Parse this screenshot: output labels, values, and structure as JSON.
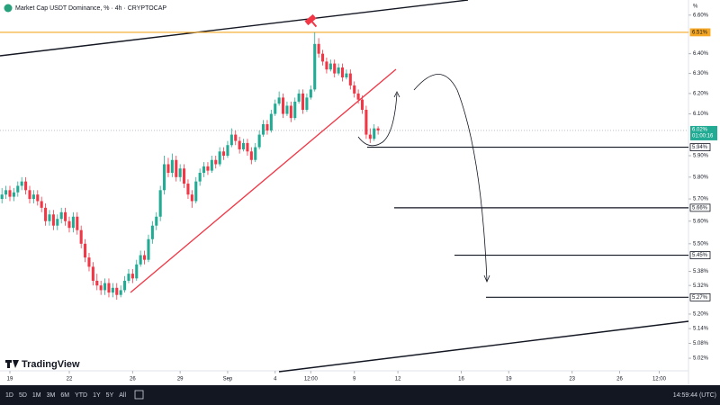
{
  "chart_data": {
    "type": "candlestick",
    "title": "Market Cap USDT Dominance, % · 4h · CRYPTOCAP",
    "scale_unit": "%",
    "up_color": "#22ab94",
    "down_color": "#f23645",
    "log_scale": true,
    "ylim": [
      4.97,
      6.68
    ],
    "yticks": [
      {
        "value": 6.6,
        "label": "6.60%"
      },
      {
        "value": 6.4,
        "label": "6.40%"
      },
      {
        "value": 6.3,
        "label": "6.30%"
      },
      {
        "value": 6.2,
        "label": "6.20%"
      },
      {
        "value": 6.1,
        "label": "6.10%"
      },
      {
        "value": 5.9,
        "label": "5.90%"
      },
      {
        "value": 5.8,
        "label": "5.80%"
      },
      {
        "value": 5.7,
        "label": "5.70%"
      },
      {
        "value": 5.6,
        "label": "5.60%"
      },
      {
        "value": 5.5,
        "label": "5.50%"
      },
      {
        "value": 5.38,
        "label": "5.38%"
      },
      {
        "value": 5.32,
        "label": "5.32%"
      },
      {
        "value": 5.2,
        "label": "5.20%"
      },
      {
        "value": 5.14,
        "label": "5.14%"
      },
      {
        "value": 5.08,
        "label": "5.08%"
      },
      {
        "value": 5.02,
        "label": "5.02%"
      }
    ],
    "xlim": [
      -0.5,
      173.4
    ],
    "xticks": [
      {
        "value": 2,
        "label": "19"
      },
      {
        "value": 17,
        "label": "22"
      },
      {
        "value": 33,
        "label": "26"
      },
      {
        "value": 45,
        "label": "29"
      },
      {
        "value": 57,
        "label": "Sep"
      },
      {
        "value": 69,
        "label": "4"
      },
      {
        "value": 78,
        "label": "12:00"
      },
      {
        "value": 89,
        "label": "9"
      },
      {
        "value": 100,
        "label": "12"
      },
      {
        "value": 116,
        "label": "16"
      },
      {
        "value": 128,
        "label": "19"
      },
      {
        "value": 144,
        "label": "23"
      },
      {
        "value": 156,
        "label": "26"
      },
      {
        "value": 166,
        "label": "12:00"
      }
    ],
    "levels": [
      {
        "value": 6.51,
        "label": "6.51%",
        "color": "#f5a623"
      },
      {
        "value": 5.94,
        "label": "5.94%",
        "color": "#131722"
      },
      {
        "value": 5.66,
        "label": "5.66%",
        "color": "#131722"
      },
      {
        "value": 5.45,
        "label": "5.45%",
        "color": "#131722"
      },
      {
        "value": 5.27,
        "label": "5.27%",
        "color": "#131722"
      }
    ],
    "last_price": {
      "value": 6.02,
      "label": "6.02%",
      "countdown": "01:00:16"
    },
    "candles": [
      [
        5.7,
        5.75,
        5.68,
        5.72
      ],
      [
        5.72,
        5.76,
        5.7,
        5.74
      ],
      [
        5.74,
        5.76,
        5.69,
        5.71
      ],
      [
        5.71,
        5.75,
        5.69,
        5.73
      ],
      [
        5.73,
        5.78,
        5.71,
        5.76
      ],
      [
        5.76,
        5.8,
        5.74,
        5.78
      ],
      [
        5.78,
        5.8,
        5.72,
        5.74
      ],
      [
        5.74,
        5.76,
        5.68,
        5.7
      ],
      [
        5.7,
        5.74,
        5.68,
        5.72
      ],
      [
        5.72,
        5.74,
        5.67,
        5.69
      ],
      [
        5.69,
        5.71,
        5.64,
        5.66
      ],
      [
        5.66,
        5.68,
        5.58,
        5.6
      ],
      [
        5.6,
        5.65,
        5.58,
        5.63
      ],
      [
        5.63,
        5.65,
        5.56,
        5.58
      ],
      [
        5.58,
        5.63,
        5.56,
        5.61
      ],
      [
        5.61,
        5.66,
        5.59,
        5.64
      ],
      [
        5.64,
        5.66,
        5.58,
        5.6
      ],
      [
        5.6,
        5.62,
        5.55,
        5.57
      ],
      [
        5.57,
        5.64,
        5.55,
        5.62
      ],
      [
        5.62,
        5.64,
        5.54,
        5.56
      ],
      [
        5.56,
        5.58,
        5.48,
        5.5
      ],
      [
        5.5,
        5.52,
        5.42,
        5.44
      ],
      [
        5.44,
        5.46,
        5.38,
        5.4
      ],
      [
        5.4,
        5.42,
        5.32,
        5.34
      ],
      [
        5.34,
        5.37,
        5.3,
        5.32
      ],
      [
        5.32,
        5.34,
        5.28,
        5.3
      ],
      [
        5.3,
        5.35,
        5.28,
        5.33
      ],
      [
        5.33,
        5.35,
        5.27,
        5.29
      ],
      [
        5.29,
        5.33,
        5.27,
        5.31
      ],
      [
        5.31,
        5.33,
        5.26,
        5.28
      ],
      [
        5.28,
        5.32,
        5.27,
        5.3
      ],
      [
        5.3,
        5.36,
        5.29,
        5.34
      ],
      [
        5.34,
        5.39,
        5.33,
        5.37
      ],
      [
        5.37,
        5.39,
        5.33,
        5.35
      ],
      [
        5.35,
        5.43,
        5.34,
        5.41
      ],
      [
        5.41,
        5.47,
        5.4,
        5.45
      ],
      [
        5.45,
        5.47,
        5.41,
        5.43
      ],
      [
        5.43,
        5.54,
        5.42,
        5.52
      ],
      [
        5.52,
        5.6,
        5.5,
        5.58
      ],
      [
        5.58,
        5.64,
        5.56,
        5.62
      ],
      [
        5.62,
        5.76,
        5.6,
        5.74
      ],
      [
        5.74,
        5.9,
        5.72,
        5.86
      ],
      [
        5.86,
        5.89,
        5.8,
        5.82
      ],
      [
        5.82,
        5.91,
        5.8,
        5.88
      ],
      [
        5.88,
        5.9,
        5.78,
        5.8
      ],
      [
        5.8,
        5.86,
        5.78,
        5.84
      ],
      [
        5.84,
        5.86,
        5.75,
        5.77
      ],
      [
        5.77,
        5.79,
        5.7,
        5.72
      ],
      [
        5.72,
        5.74,
        5.66,
        5.69
      ],
      [
        5.69,
        5.8,
        5.68,
        5.78
      ],
      [
        5.78,
        5.84,
        5.76,
        5.82
      ],
      [
        5.82,
        5.87,
        5.8,
        5.85
      ],
      [
        5.85,
        5.87,
        5.81,
        5.83
      ],
      [
        5.83,
        5.9,
        5.82,
        5.88
      ],
      [
        5.88,
        5.9,
        5.84,
        5.86
      ],
      [
        5.86,
        5.94,
        5.85,
        5.92
      ],
      [
        5.92,
        5.94,
        5.88,
        5.9
      ],
      [
        5.9,
        5.97,
        5.89,
        5.95
      ],
      [
        5.95,
        6.03,
        5.94,
        6.0
      ],
      [
        6.0,
        6.02,
        5.95,
        5.97
      ],
      [
        5.97,
        5.99,
        5.91,
        5.93
      ],
      [
        5.93,
        5.98,
        5.92,
        5.96
      ],
      [
        5.96,
        5.98,
        5.9,
        5.92
      ],
      [
        5.92,
        5.94,
        5.86,
        5.88
      ],
      [
        5.88,
        5.96,
        5.87,
        5.94
      ],
      [
        5.94,
        6.02,
        5.93,
        6.0
      ],
      [
        6.0,
        6.07,
        5.99,
        6.05
      ],
      [
        6.05,
        6.07,
        6.0,
        6.02
      ],
      [
        6.02,
        6.12,
        6.01,
        6.1
      ],
      [
        6.1,
        6.17,
        6.09,
        6.15
      ],
      [
        6.15,
        6.21,
        6.14,
        6.18
      ],
      [
        6.18,
        6.2,
        6.08,
        6.1
      ],
      [
        6.1,
        6.16,
        6.09,
        6.14
      ],
      [
        6.14,
        6.16,
        6.06,
        6.08
      ],
      [
        6.08,
        6.18,
        6.07,
        6.16
      ],
      [
        6.16,
        6.22,
        6.15,
        6.2
      ],
      [
        6.2,
        6.22,
        6.1,
        6.12
      ],
      [
        6.12,
        6.2,
        6.11,
        6.18
      ],
      [
        6.18,
        6.24,
        6.17,
        6.22
      ],
      [
        6.22,
        6.51,
        6.21,
        6.45
      ],
      [
        6.45,
        6.48,
        6.38,
        6.4
      ],
      [
        6.4,
        6.42,
        6.34,
        6.36
      ],
      [
        6.36,
        6.38,
        6.3,
        6.32
      ],
      [
        6.32,
        6.37,
        6.31,
        6.35
      ],
      [
        6.35,
        6.37,
        6.28,
        6.3
      ],
      [
        6.3,
        6.35,
        6.29,
        6.33
      ],
      [
        6.33,
        6.35,
        6.26,
        6.28
      ],
      [
        6.28,
        6.32,
        6.27,
        6.3
      ],
      [
        6.3,
        6.32,
        6.22,
        6.24
      ],
      [
        6.24,
        6.26,
        6.18,
        6.2
      ],
      [
        6.2,
        6.22,
        6.15,
        6.17
      ],
      [
        6.17,
        6.19,
        6.1,
        6.12
      ],
      [
        6.12,
        6.14,
        5.98,
        6.0
      ],
      [
        6.0,
        6.03,
        5.96,
        5.98
      ],
      [
        5.98,
        6.05,
        5.97,
        6.03
      ],
      [
        6.03,
        6.04,
        6.0,
        6.02
      ]
    ],
    "branding": "TradingView",
    "periods": [
      "1D",
      "5D",
      "1M",
      "3M",
      "6M",
      "YTD",
      "1Y",
      "5Y",
      "All"
    ],
    "clock": "14:59:44 (UTC)"
  }
}
